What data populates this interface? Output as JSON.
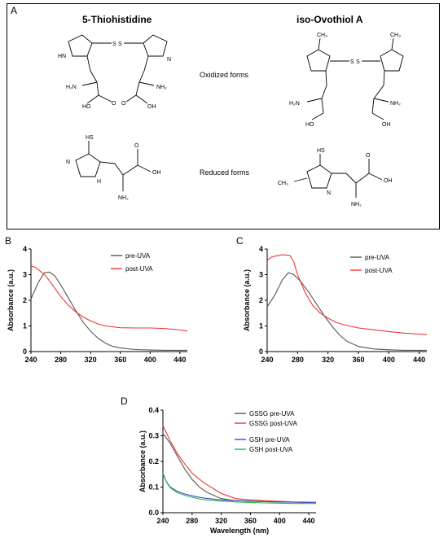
{
  "panel_a": {
    "label": "A",
    "compounds": {
      "left": "5-Thiohistidine",
      "right": "iso-Ovothiol A"
    },
    "forms": {
      "oxidized": "Oxidized forms",
      "reduced": "Reduced forms"
    },
    "atoms": {
      "S": "S",
      "N": "N",
      "HN": "HN",
      "H2N": "H₂N",
      "NH2": "NH₂",
      "OH": "OH",
      "HO": "HO",
      "O": "O",
      "HS": "HS",
      "H": "H",
      "CH3": "CH₃"
    }
  },
  "chart_data": [
    {
      "panel": "B",
      "type": "line",
      "xlabel": "Wavelength (nm)",
      "ylabel": "Absorbance (a.u.)",
      "xlim": [
        240,
        450
      ],
      "ylim": [
        0,
        4
      ],
      "xticks": [
        240,
        280,
        320,
        360,
        400,
        440
      ],
      "yticks": [
        0,
        1,
        2,
        3,
        4
      ],
      "legend_position": "top-right",
      "series": [
        {
          "name": "pre-UVA",
          "color": "#555555",
          "x": [
            240,
            250,
            258,
            265,
            272,
            280,
            290,
            300,
            310,
            320,
            330,
            340,
            350,
            360,
            380,
            400,
            420,
            440,
            450
          ],
          "y": [
            2.05,
            2.7,
            3.08,
            3.1,
            2.95,
            2.6,
            2.1,
            1.6,
            1.15,
            0.8,
            0.52,
            0.33,
            0.2,
            0.14,
            0.08,
            0.06,
            0.05,
            0.05,
            0.05
          ]
        },
        {
          "name": "post-UVA",
          "color": "#ee3333",
          "x": [
            240,
            245,
            250,
            260,
            270,
            280,
            290,
            300,
            310,
            320,
            330,
            340,
            360,
            380,
            400,
            420,
            440,
            450
          ],
          "y": [
            3.33,
            3.3,
            3.2,
            2.95,
            2.55,
            2.15,
            1.82,
            1.55,
            1.35,
            1.2,
            1.08,
            1.0,
            0.93,
            0.92,
            0.92,
            0.9,
            0.84,
            0.8
          ]
        }
      ]
    },
    {
      "panel": "C",
      "type": "line",
      "xlabel": "Wavelength (nm)",
      "ylabel": "Absorbance (a.u.)",
      "xlim": [
        240,
        450
      ],
      "ylim": [
        0,
        4
      ],
      "xticks": [
        240,
        280,
        320,
        360,
        400,
        440
      ],
      "yticks": [
        0,
        1,
        2,
        3,
        4
      ],
      "legend_position": "top-right",
      "series": [
        {
          "name": "pre-UVA",
          "color": "#555555",
          "x": [
            240,
            250,
            260,
            268,
            275,
            285,
            295,
            305,
            315,
            325,
            335,
            345,
            360,
            380,
            400,
            420,
            440,
            450
          ],
          "y": [
            1.75,
            2.2,
            2.8,
            3.08,
            3.0,
            2.7,
            2.3,
            1.85,
            1.4,
            1.0,
            0.65,
            0.4,
            0.2,
            0.1,
            0.07,
            0.05,
            0.05,
            0.05
          ]
        },
        {
          "name": "post-UVA",
          "color": "#ee3333",
          "x": [
            240,
            245,
            250,
            260,
            270,
            275,
            280,
            290,
            300,
            310,
            320,
            330,
            340,
            360,
            380,
            400,
            420,
            440,
            450
          ],
          "y": [
            3.55,
            3.68,
            3.72,
            3.78,
            3.75,
            3.5,
            3.0,
            2.3,
            1.8,
            1.5,
            1.3,
            1.15,
            1.05,
            0.92,
            0.85,
            0.78,
            0.72,
            0.68,
            0.66
          ]
        }
      ]
    },
    {
      "panel": "D",
      "type": "line",
      "xlabel": "Wavelength (nm)",
      "ylabel": "Absorbance (a.u.)",
      "xlim": [
        240,
        450
      ],
      "ylim": [
        0,
        0.4
      ],
      "xticks": [
        240,
        280,
        320,
        360,
        400,
        440
      ],
      "yticks": [
        0.0,
        0.1,
        0.2,
        0.3,
        0.4
      ],
      "legend_position": "top-right",
      "series": [
        {
          "name": "GSSG pre-UVA",
          "color": "#555555",
          "x": [
            240,
            250,
            260,
            270,
            280,
            290,
            300,
            320,
            340,
            360,
            380,
            400,
            420,
            440,
            450
          ],
          "y": [
            0.31,
            0.27,
            0.22,
            0.17,
            0.13,
            0.1,
            0.08,
            0.055,
            0.047,
            0.045,
            0.043,
            0.042,
            0.041,
            0.04,
            0.04
          ]
        },
        {
          "name": "GSSG post-UVA",
          "color": "#ee3333",
          "x": [
            240,
            250,
            260,
            270,
            280,
            290,
            300,
            320,
            340,
            360,
            380,
            400,
            420,
            440,
            450
          ],
          "y": [
            0.34,
            0.28,
            0.23,
            0.19,
            0.155,
            0.13,
            0.11,
            0.075,
            0.055,
            0.05,
            0.047,
            0.044,
            0.042,
            0.041,
            0.04
          ]
        },
        {
          "name": "GSH pre-UVA",
          "color": "#3a4fc4",
          "x": [
            240,
            245,
            250,
            260,
            270,
            280,
            290,
            300,
            320,
            340,
            360,
            380,
            400,
            420,
            440,
            450
          ],
          "y": [
            0.15,
            0.12,
            0.1,
            0.083,
            0.073,
            0.066,
            0.06,
            0.056,
            0.05,
            0.047,
            0.045,
            0.043,
            0.042,
            0.041,
            0.04,
            0.04
          ]
        },
        {
          "name": "GSH post-UVA",
          "color": "#22bb44",
          "x": [
            240,
            245,
            250,
            260,
            270,
            280,
            290,
            300,
            320,
            340,
            360,
            380,
            400,
            420,
            440,
            450
          ],
          "y": [
            0.155,
            0.118,
            0.097,
            0.078,
            0.068,
            0.06,
            0.054,
            0.05,
            0.045,
            0.042,
            0.04,
            0.038,
            0.037,
            0.036,
            0.036,
            0.036
          ]
        }
      ]
    }
  ]
}
